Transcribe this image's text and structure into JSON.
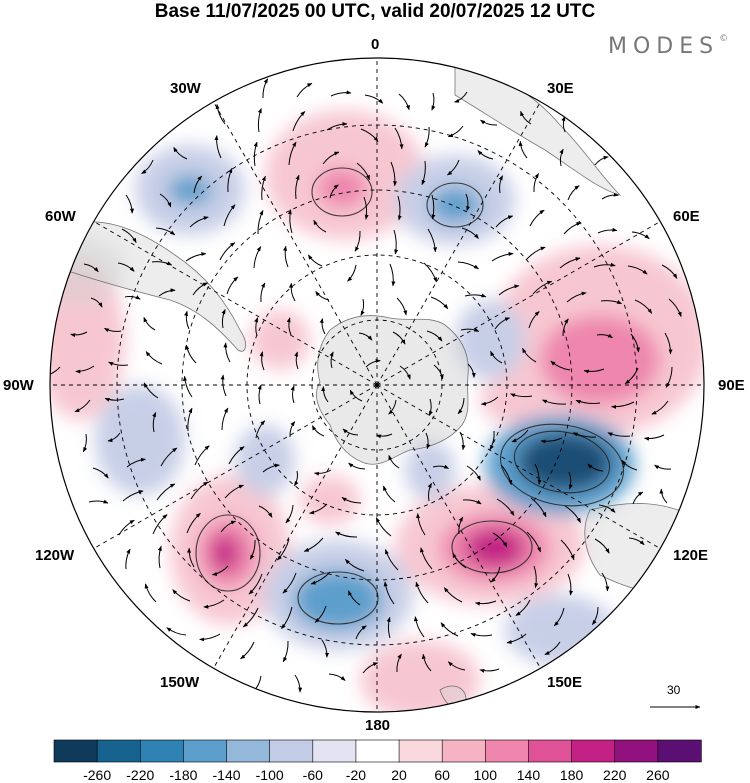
{
  "title": "Base 11/07/2025 00 UTC, valid 20/07/2025 12 UTC",
  "brand": "MODES",
  "brand_mark": "©",
  "longitude_labels": {
    "lon_0": "0",
    "lon_30e": "30E",
    "lon_60e": "60E",
    "lon_90e": "90E",
    "lon_120e": "120E",
    "lon_150e": "150E",
    "lon_180": "180",
    "lon_150w": "150W",
    "lon_120w": "120W",
    "lon_90w": "90W",
    "lon_60w": "60W",
    "lon_30w": "30W"
  },
  "reference_vector": {
    "value": "30"
  },
  "colorbar": {
    "colors": [
      "#0f3a5a",
      "#17638f",
      "#2f82b4",
      "#5d9fcc",
      "#94b8da",
      "#c2cce6",
      "#e3e3f2",
      "#ffffff",
      "#fad9de",
      "#f5b3c4",
      "#ee86ad",
      "#e05297",
      "#c42185",
      "#93107f",
      "#5b0f73"
    ],
    "ticks": [
      "-260",
      "-220",
      "-180",
      "-140",
      "-100",
      "-60",
      "-20",
      "20",
      "60",
      "100",
      "140",
      "180",
      "220",
      "260"
    ]
  },
  "anomaly_colors": {
    "strong_negative": "#1b4d74",
    "negative": "#5d9fcc",
    "weak_negative": "#c7cfe7",
    "weak_positive": "#f7c7d1",
    "positive": "#ee86ad",
    "strong_positive": "#c42185",
    "land_shade": "#d2d2d2"
  }
}
